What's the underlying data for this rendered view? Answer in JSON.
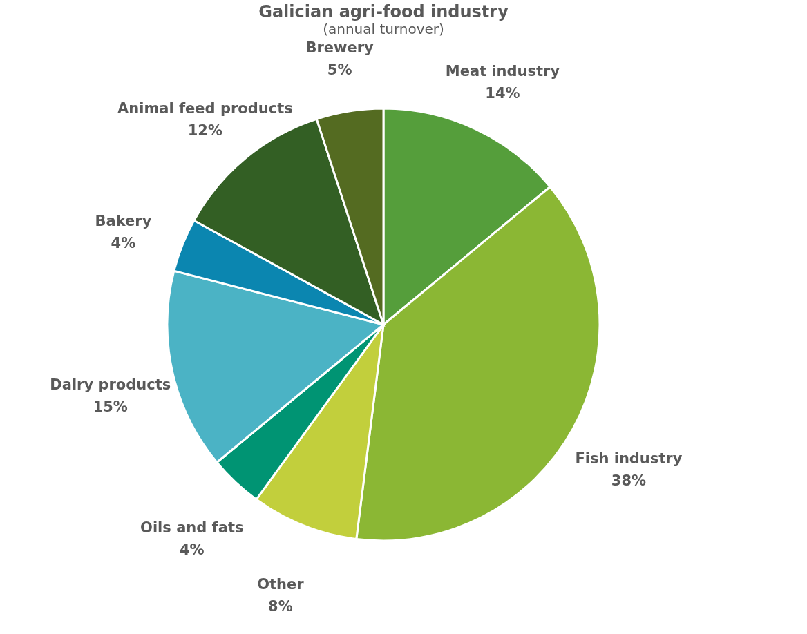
{
  "chart_data": {
    "type": "pie",
    "title": "Galician agri-food industry",
    "subtitle": "(annual turnover)",
    "categories": [
      "Meat industry",
      "Fish industry",
      "Other",
      "Oils and fats",
      "Dairy products",
      "Bakery",
      "Animal feed products",
      "Brewery"
    ],
    "values": [
      14,
      38,
      8,
      4,
      15,
      4,
      12,
      5
    ],
    "value_labels": [
      "14%",
      "38%",
      "8%",
      "4%",
      "15%",
      "4%",
      "12%",
      "5%"
    ],
    "colors": [
      "#559e3b",
      "#8bb734",
      "#c2cf3c",
      "#009473",
      "#4bb3c5",
      "#0b86b0",
      "#335f24",
      "#546b21"
    ],
    "legend": false
  }
}
